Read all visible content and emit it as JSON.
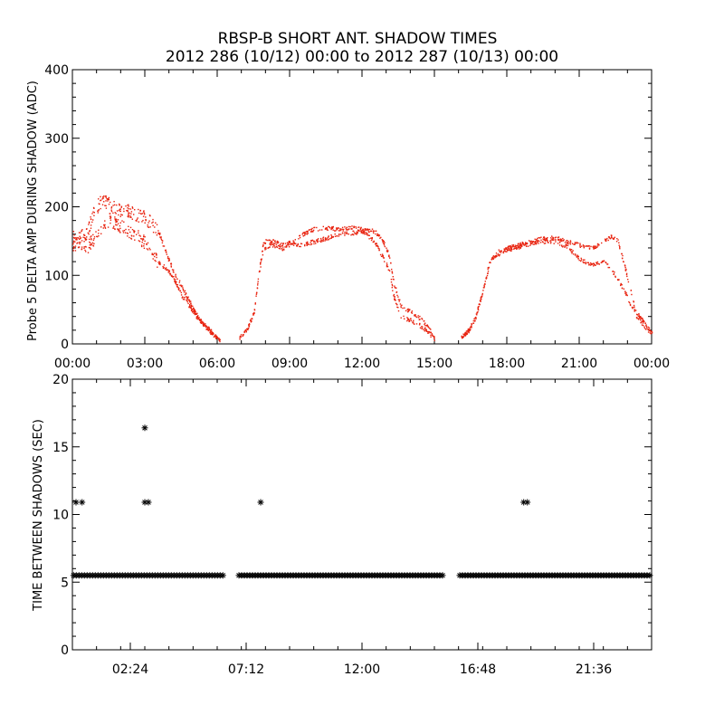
{
  "header": {
    "title": "RBSP-B SHORT ANT. SHADOW TIMES",
    "subtitle": "2012 286 (10/12) 00:00 to 2012 287 (10/13) 00:00"
  },
  "colors": {
    "amp_points": "#e8220e",
    "interval_points": "#000000",
    "axes": "#000000",
    "background": "#ffffff"
  },
  "chart_data": [
    {
      "type": "scatter",
      "marker": "dot",
      "title": "",
      "xlabel": "",
      "ylabel": "Probe 5 DELTA AMP DURING SHADOW (ADC)",
      "x_unit": "hours",
      "xlim": [
        0,
        24
      ],
      "ylim": [
        0,
        400
      ],
      "y_ticks": [
        0,
        100,
        200,
        300,
        400
      ],
      "y_tick_labels": [
        "0",
        "100",
        "200",
        "300",
        "400"
      ],
      "x_ticks": [
        0,
        3,
        6,
        9,
        12,
        15,
        18,
        21,
        24
      ],
      "x_tick_labels": [
        "00:00",
        "03:00",
        "06:00",
        "09:00",
        "12:00",
        "15:00",
        "18:00",
        "21:00",
        "00:00"
      ],
      "grid": false,
      "series": [
        {
          "values_upper": [
            [
              0.0,
              155
            ],
            [
              0.3,
              158
            ],
            [
              0.6,
              162
            ],
            [
              0.9,
              195
            ],
            [
              1.2,
              210
            ],
            [
              1.5,
              205
            ],
            [
              1.8,
              198
            ],
            [
              2.2,
              195
            ],
            [
              2.6,
              190
            ],
            [
              3.0,
              185
            ],
            [
              3.3,
              175
            ],
            [
              3.6,
              160
            ],
            [
              3.9,
              130
            ],
            [
              4.2,
              105
            ],
            [
              4.5,
              85
            ],
            [
              4.8,
              65
            ],
            [
              5.1,
              45
            ],
            [
              5.4,
              30
            ],
            [
              5.7,
              20
            ],
            [
              6.1,
              5
            ]
          ],
          "values_lower": [
            [
              0.0,
              145
            ],
            [
              0.3,
              150
            ],
            [
              0.6,
              142
            ],
            [
              0.9,
              155
            ],
            [
              1.2,
              170
            ],
            [
              1.5,
              182
            ],
            [
              1.8,
              175
            ],
            [
              2.2,
              168
            ],
            [
              2.6,
              160
            ],
            [
              3.0,
              148
            ],
            [
              3.3,
              130
            ],
            [
              3.6,
              118
            ],
            [
              3.9,
              110
            ],
            [
              4.2,
              95
            ],
            [
              4.5,
              72
            ],
            [
              4.8,
              58
            ],
            [
              5.1,
              42
            ],
            [
              5.4,
              30
            ],
            [
              5.7,
              18
            ],
            [
              6.1,
              5
            ]
          ]
        },
        {
          "values_upper": [
            [
              6.9,
              10
            ],
            [
              7.2,
              20
            ],
            [
              7.5,
              45
            ],
            [
              7.7,
              100
            ],
            [
              7.9,
              140
            ],
            [
              8.3,
              145
            ],
            [
              8.7,
              140
            ],
            [
              9.0,
              145
            ],
            [
              9.5,
              160
            ],
            [
              10.0,
              168
            ],
            [
              10.5,
              170
            ],
            [
              11.0,
              168
            ],
            [
              11.5,
              170
            ],
            [
              12.0,
              168
            ],
            [
              12.5,
              165
            ],
            [
              12.8,
              155
            ],
            [
              13.1,
              130
            ],
            [
              13.3,
              90
            ],
            [
              13.6,
              55
            ],
            [
              14.0,
              48
            ],
            [
              14.5,
              35
            ],
            [
              15.0,
              10
            ]
          ],
          "values_lower": [
            [
              6.9,
              10
            ],
            [
              7.2,
              20
            ],
            [
              7.5,
              45
            ],
            [
              7.7,
              100
            ],
            [
              7.9,
              150
            ],
            [
              8.3,
              150
            ],
            [
              8.7,
              145
            ],
            [
              9.0,
              148
            ],
            [
              9.5,
              145
            ],
            [
              10.0,
              150
            ],
            [
              10.5,
              155
            ],
            [
              11.0,
              160
            ],
            [
              11.5,
              162
            ],
            [
              12.0,
              165
            ],
            [
              12.5,
              150
            ],
            [
              12.8,
              130
            ],
            [
              13.1,
              110
            ],
            [
              13.3,
              70
            ],
            [
              13.6,
              40
            ],
            [
              14.0,
              35
            ],
            [
              14.5,
              25
            ],
            [
              15.0,
              8
            ]
          ]
        },
        {
          "values_upper": [
            [
              16.1,
              10
            ],
            [
              16.4,
              20
            ],
            [
              16.7,
              40
            ],
            [
              17.0,
              80
            ],
            [
              17.3,
              125
            ],
            [
              17.6,
              130
            ],
            [
              18.0,
              140
            ],
            [
              18.5,
              145
            ],
            [
              19.0,
              150
            ],
            [
              19.5,
              155
            ],
            [
              20.0,
              155
            ],
            [
              20.5,
              150
            ],
            [
              21.0,
              145
            ],
            [
              21.5,
              140
            ],
            [
              22.0,
              150
            ],
            [
              22.3,
              158
            ],
            [
              22.6,
              150
            ],
            [
              22.9,
              110
            ],
            [
              23.1,
              80
            ],
            [
              23.3,
              50
            ],
            [
              23.6,
              35
            ],
            [
              24.0,
              15
            ]
          ],
          "values_lower": [
            [
              16.1,
              10
            ],
            [
              16.4,
              20
            ],
            [
              16.7,
              40
            ],
            [
              17.0,
              80
            ],
            [
              17.3,
              120
            ],
            [
              17.6,
              135
            ],
            [
              18.0,
              138
            ],
            [
              18.5,
              142
            ],
            [
              19.0,
              148
            ],
            [
              19.5,
              150
            ],
            [
              20.0,
              150
            ],
            [
              20.5,
              142
            ],
            [
              21.0,
              125
            ],
            [
              21.5,
              115
            ],
            [
              22.0,
              120
            ],
            [
              22.3,
              110
            ],
            [
              22.6,
              95
            ],
            [
              22.9,
              75
            ],
            [
              23.1,
              60
            ],
            [
              23.3,
              45
            ],
            [
              23.6,
              30
            ],
            [
              24.0,
              15
            ]
          ]
        }
      ]
    },
    {
      "type": "scatter",
      "marker": "asterisk",
      "title": "",
      "xlabel": "",
      "ylabel": "TIME BETWEEN SHADOWS (SEC)",
      "x_unit": "hours",
      "xlim": [
        0,
        24
      ],
      "ylim": [
        0,
        20
      ],
      "y_ticks": [
        0,
        5,
        10,
        15,
        20
      ],
      "y_tick_labels": [
        "0",
        "5",
        "10",
        "15",
        "20"
      ],
      "x_ticks": [
        2.4,
        7.2,
        12.0,
        16.8,
        21.6
      ],
      "x_tick_labels": [
        "02:24",
        "07:12",
        "12:00",
        "16:48",
        "21:36"
      ],
      "grid": false,
      "baseline_value": 5.5,
      "baseline_ranges": [
        [
          0.05,
          6.3
        ],
        [
          6.9,
          15.35
        ],
        [
          16.05,
          24.0
        ]
      ],
      "outliers": [
        [
          0.15,
          10.9
        ],
        [
          0.4,
          10.9
        ],
        [
          3.0,
          16.4
        ],
        [
          3.0,
          10.9
        ],
        [
          3.15,
          10.9
        ],
        [
          7.8,
          10.9
        ],
        [
          18.7,
          10.9
        ],
        [
          18.85,
          10.9
        ]
      ]
    }
  ]
}
